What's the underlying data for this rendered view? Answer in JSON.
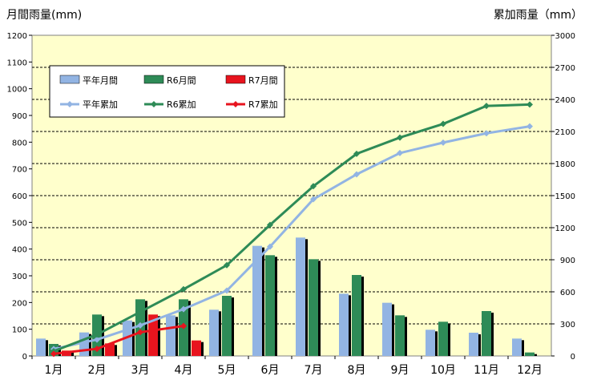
{
  "chart_data": {
    "type": "bar+line",
    "categories": [
      "1月",
      "2月",
      "3月",
      "4月",
      "5月",
      "6月",
      "7月",
      "8月",
      "9月",
      "10月",
      "11月",
      "12月"
    ],
    "ylabel_left": "月間雨量(mm)",
    "ylabel_right": "累加雨量（mm）",
    "ylim_left": [
      0,
      1200
    ],
    "ylim_right": [
      0,
      3000
    ],
    "yticks_left": [
      0,
      100,
      200,
      300,
      400,
      500,
      600,
      700,
      800,
      900,
      1000,
      1100,
      1200
    ],
    "yticks_right": [
      0,
      300,
      600,
      900,
      1200,
      1500,
      1800,
      2100,
      2400,
      2700,
      3000
    ],
    "grid": true,
    "legend_position": "top-left",
    "bars": [
      {
        "name": "平年月間",
        "color": "#92b4e3",
        "values": [
          65,
          88,
          133,
          152,
          173,
          412,
          443,
          233,
          199,
          98,
          87,
          65
        ]
      },
      {
        "name": "R6月間",
        "color": "#2e8b57",
        "values": [
          45,
          155,
          212,
          212,
          225,
          377,
          362,
          303,
          152,
          128,
          168,
          13
        ]
      },
      {
        "name": "R7月間",
        "color": "#e8141e",
        "values": [
          20,
          47,
          155,
          58
        ]
      }
    ],
    "lines": [
      {
        "name": "平年累加",
        "color": "#92b4e3",
        "values": [
          65,
          153,
          286,
          438,
          611,
          1023,
          1466,
          1699,
          1898,
          1996,
          2083,
          2148
        ]
      },
      {
        "name": "R6累加",
        "color": "#2e8b57",
        "values": [
          45,
          200,
          412,
          624,
          849,
          1226,
          1588,
          1891,
          2043,
          2171,
          2339,
          2352
        ]
      },
      {
        "name": "R7累加",
        "color": "#e8141e",
        "values": [
          20,
          67,
          222,
          280
        ]
      }
    ]
  }
}
